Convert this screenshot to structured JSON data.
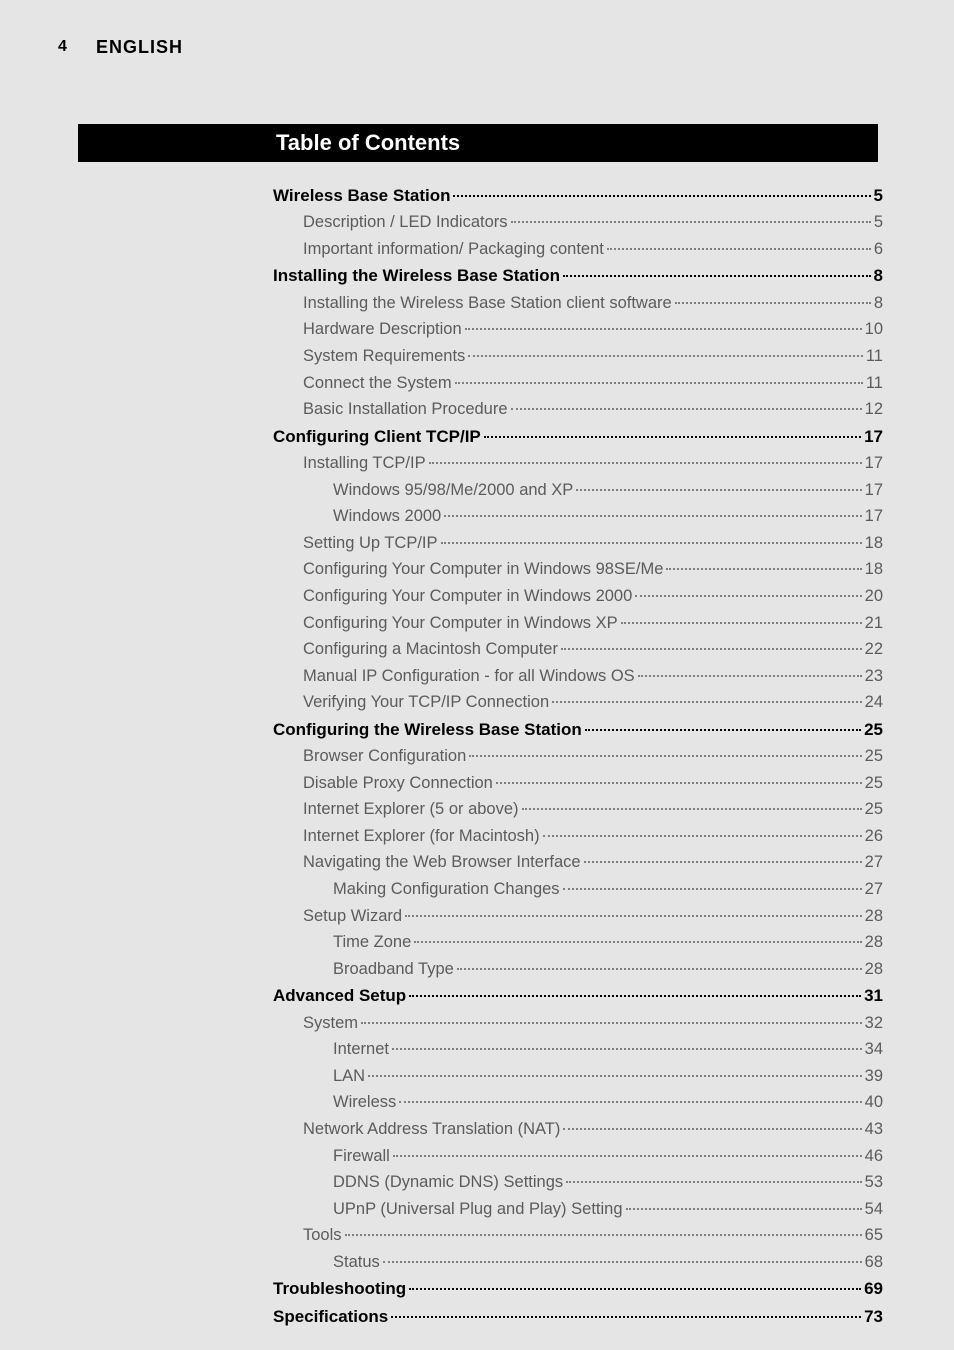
{
  "header": {
    "page_number": "4",
    "language": "ENGLISH"
  },
  "title_bar": {
    "title": "Table of Contents"
  },
  "toc": {
    "entries": [
      {
        "label": "Wireless Base Station",
        "page": "5",
        "level": 0
      },
      {
        "label": "Description / LED Indicators",
        "page": "5",
        "level": 1
      },
      {
        "label": "Important information/ Packaging content",
        "page": "6",
        "level": 1
      },
      {
        "label": "Installing the Wireless Base Station",
        "page": "8",
        "level": 0
      },
      {
        "label": "Installing the Wireless Base Station client software",
        "page": "8",
        "level": 1
      },
      {
        "label": "Hardware Description",
        "page": "10",
        "level": 1
      },
      {
        "label": "System Requirements",
        "page": "11",
        "level": 1
      },
      {
        "label": "Connect the System",
        "page": "11",
        "level": 1
      },
      {
        "label": "Basic Installation Procedure",
        "page": "12",
        "level": 1
      },
      {
        "label": "Configuring Client TCP/IP",
        "page": "17",
        "level": 0
      },
      {
        "label": "Installing TCP/IP",
        "page": "17",
        "level": 1
      },
      {
        "label": "Windows 95/98/Me/2000 and XP",
        "page": "17",
        "level": 2
      },
      {
        "label": "Windows 2000",
        "page": "17",
        "level": 2
      },
      {
        "label": "Setting Up TCP/IP",
        "page": "18",
        "level": 1
      },
      {
        "label": "Configuring Your Computer in Windows 98SE/Me",
        "page": "18",
        "level": 1
      },
      {
        "label": "Configuring Your Computer in Windows 2000",
        "page": "20",
        "level": 1
      },
      {
        "label": "Configuring Your Computer in Windows XP",
        "page": "21",
        "level": 1
      },
      {
        "label": "Configuring a Macintosh Computer",
        "page": "22",
        "level": 1
      },
      {
        "label": "Manual IP Configuration - for all Windows OS",
        "page": "23",
        "level": 1
      },
      {
        "label": "Verifying Your TCP/IP Connection",
        "page": "24",
        "level": 1
      },
      {
        "label": "Configuring the Wireless Base Station",
        "page": "25",
        "level": 0
      },
      {
        "label": "Browser Configuration",
        "page": "25",
        "level": 1
      },
      {
        "label": "Disable Proxy Connection",
        "page": "25",
        "level": 1
      },
      {
        "label": "Internet Explorer (5 or above)",
        "page": "25",
        "level": 1
      },
      {
        "label": "Internet Explorer (for Macintosh)",
        "page": "26",
        "level": 1
      },
      {
        "label": "Navigating the Web Browser Interface",
        "page": "27",
        "level": 1
      },
      {
        "label": "Making Configuration Changes",
        "page": "27",
        "level": 2
      },
      {
        "label": "Setup Wizard",
        "page": "28",
        "level": 1
      },
      {
        "label": "Time Zone",
        "page": "28",
        "level": 2
      },
      {
        "label": "Broadband Type",
        "page": "28",
        "level": 2
      },
      {
        "label": "Advanced Setup",
        "page": "31",
        "level": 0
      },
      {
        "label": "System",
        "page": "32",
        "level": 1
      },
      {
        "label": "Internet",
        "page": "34",
        "level": 2
      },
      {
        "label": "LAN",
        "page": "39",
        "level": 2
      },
      {
        "label": "Wireless",
        "page": "40",
        "level": 2
      },
      {
        "label": "Network Address Translation (NAT)",
        "page": "43",
        "level": 1
      },
      {
        "label": "Firewall",
        "page": "46",
        "level": 2
      },
      {
        "label": "DDNS (Dynamic DNS) Settings",
        "page": "53",
        "level": 2
      },
      {
        "label": "UPnP (Universal Plug and Play) Setting",
        "page": "54",
        "level": 2
      },
      {
        "label": "Tools",
        "page": "65",
        "level": 1
      },
      {
        "label": "Status",
        "page": "68",
        "level": 2
      },
      {
        "label": "Troubleshooting",
        "page": "69",
        "level": 0
      },
      {
        "label": "Specifications",
        "page": "73",
        "level": 0
      }
    ]
  },
  "colors": {
    "page_background": "#e5e5e5",
    "title_bar_background": "#000000",
    "title_text": "#ffffff",
    "header_text": "#000000",
    "level0_text": "#000000",
    "sub_text": "#5b5b5b",
    "dot_color_sub": "#808080",
    "dot_color_main": "#000000"
  },
  "typography": {
    "font_family": "Gill Sans",
    "title_fontsize": 22,
    "header_fontsize": 18,
    "level0_fontsize": 17,
    "sub_fontsize": 16.5
  }
}
